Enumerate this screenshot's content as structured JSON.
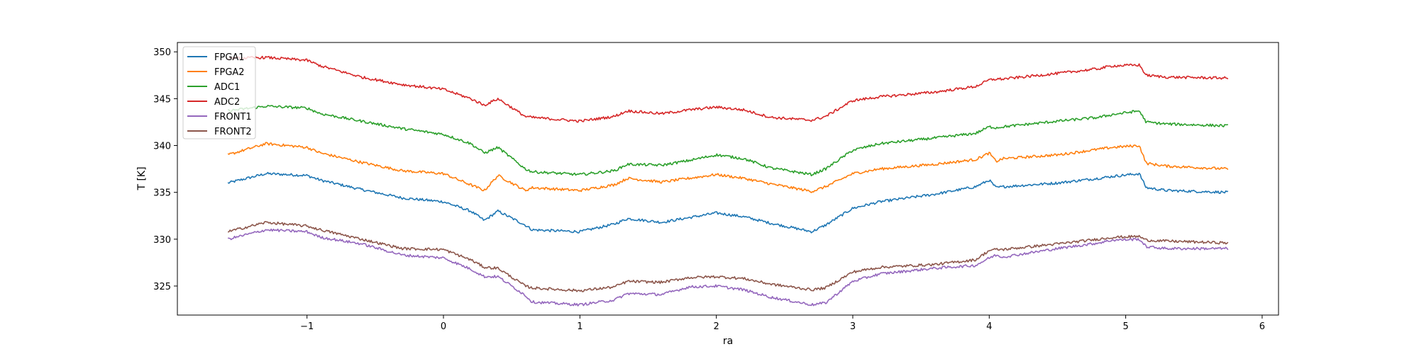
{
  "chart_data": {
    "type": "line",
    "title": "",
    "xlabel": "ra",
    "ylabel": "T [K]",
    "xlim": [
      -1.95,
      6.12
    ],
    "ylim": [
      321.9,
      351.0
    ],
    "xticks": [
      -1,
      0,
      1,
      2,
      3,
      4,
      5,
      6
    ],
    "xtick_labels": [
      "−1",
      "0",
      "1",
      "2",
      "3",
      "4",
      "5",
      "6"
    ],
    "yticks": [
      325,
      330,
      335,
      340,
      345,
      350
    ],
    "ytick_labels": [
      "325",
      "330",
      "335",
      "340",
      "345",
      "350"
    ],
    "grid": false,
    "legend_position": "top-left",
    "x": [
      -1.58,
      -1.3,
      -1.0,
      -0.9,
      -0.6,
      -0.3,
      0.0,
      0.2,
      0.3,
      0.4,
      0.6,
      0.65,
      1.0,
      1.25,
      1.35,
      1.6,
      1.8,
      2.0,
      2.2,
      2.4,
      2.7,
      2.8,
      3.0,
      3.2,
      3.6,
      3.9,
      4.0,
      4.05,
      4.1,
      4.5,
      4.8,
      4.9,
      5.1,
      5.15,
      5.3,
      5.75
    ],
    "series": [
      {
        "name": "FPGA1",
        "color": "#1f77b4",
        "values": [
          336.0,
          337.0,
          336.8,
          336.3,
          335.3,
          334.4,
          334.0,
          333.0,
          332.0,
          333.0,
          331.5,
          331.0,
          330.8,
          331.6,
          332.2,
          331.8,
          332.3,
          332.8,
          332.4,
          331.7,
          330.8,
          331.5,
          333.3,
          334.0,
          334.8,
          335.6,
          336.3,
          335.5,
          335.6,
          336.0,
          336.5,
          336.7,
          337.0,
          335.5,
          335.2,
          335.0
        ]
      },
      {
        "name": "FPGA2",
        "color": "#ff7f0e",
        "values": [
          339.0,
          340.2,
          339.8,
          339.2,
          338.2,
          337.3,
          337.0,
          335.8,
          335.2,
          336.8,
          335.2,
          335.5,
          335.2,
          335.8,
          336.5,
          336.1,
          336.5,
          336.9,
          336.5,
          335.9,
          335.1,
          335.6,
          337.0,
          337.5,
          338.0,
          338.5,
          339.2,
          338.3,
          338.6,
          339.0,
          339.6,
          339.8,
          340.0,
          338.1,
          337.8,
          337.5
        ]
      },
      {
        "name": "ADC1",
        "color": "#2ca02c",
        "values": [
          343.7,
          344.2,
          344.0,
          343.4,
          342.6,
          341.8,
          341.2,
          340.2,
          339.2,
          339.8,
          337.5,
          337.2,
          336.9,
          337.3,
          338.0,
          337.9,
          338.4,
          339.0,
          338.6,
          337.6,
          336.9,
          337.5,
          339.5,
          340.2,
          340.8,
          341.3,
          342.0,
          341.9,
          342.0,
          342.6,
          343.0,
          343.3,
          343.7,
          342.5,
          342.3,
          342.1
        ]
      },
      {
        "name": "ADC2",
        "color": "#d62728",
        "values": [
          349.3,
          349.4,
          349.1,
          348.5,
          347.3,
          346.5,
          346.0,
          345.0,
          344.3,
          345.0,
          343.1,
          343.0,
          342.6,
          343.1,
          343.7,
          343.4,
          343.8,
          344.1,
          343.8,
          343.0,
          342.7,
          343.1,
          344.8,
          345.2,
          345.7,
          346.3,
          347.0,
          347.1,
          347.1,
          347.7,
          348.2,
          348.5,
          348.6,
          347.5,
          347.3,
          347.2
        ]
      },
      {
        "name": "FRONT1",
        "color": "#9467bd",
        "values": [
          330.0,
          331.0,
          330.8,
          330.2,
          329.5,
          328.3,
          328.0,
          326.8,
          326.0,
          326.0,
          324.0,
          323.3,
          323.0,
          323.5,
          324.2,
          324.1,
          324.9,
          325.0,
          324.6,
          323.8,
          323.0,
          323.2,
          325.5,
          326.3,
          326.9,
          327.2,
          328.0,
          328.3,
          328.1,
          329.0,
          329.6,
          329.9,
          330.0,
          329.2,
          329.0,
          329.0
        ]
      },
      {
        "name": "FRONT2",
        "color": "#8c564b",
        "values": [
          330.8,
          331.8,
          331.4,
          331.0,
          330.0,
          329.0,
          328.9,
          327.8,
          327.0,
          326.9,
          325.0,
          324.8,
          324.5,
          324.9,
          325.5,
          325.4,
          325.9,
          326.0,
          325.8,
          325.2,
          324.6,
          324.8,
          326.5,
          327.0,
          327.3,
          327.8,
          328.8,
          328.9,
          328.9,
          329.5,
          330.0,
          330.2,
          330.3,
          329.9,
          329.8,
          329.6
        ]
      }
    ]
  }
}
